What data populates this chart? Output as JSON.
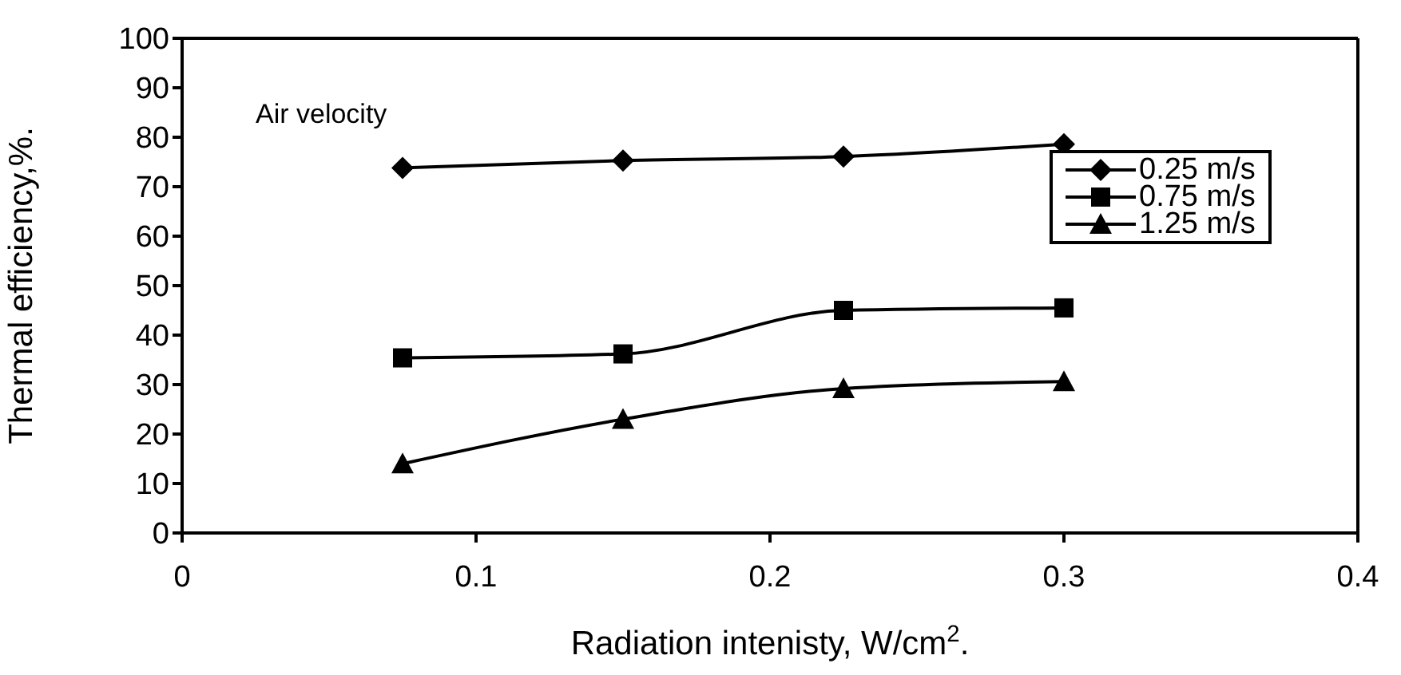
{
  "chart_data": {
    "type": "line",
    "xlabel": "Radiation intenisty, W/cm$^{2}$.",
    "ylabel": "Thermal efficiency,%.",
    "annotations": [
      "Air velocity"
    ],
    "x": [
      0.075,
      0.15,
      0.225,
      0.3
    ],
    "series": [
      {
        "name": "0.25 m/s",
        "color": "#000000",
        "marker": "diamond",
        "values": [
          73.8,
          75.3,
          76.1,
          78.6
        ]
      },
      {
        "name": "0.75 m/s",
        "color": "#000000",
        "marker": "square",
        "values": [
          35.4,
          36.2,
          45,
          45.5
        ]
      },
      {
        "name": "1.25 m/s",
        "color": "#000000",
        "marker": "triangle",
        "values": [
          14,
          23,
          29.2,
          30.6
        ]
      }
    ],
    "xlim": [
      0,
      0.4
    ],
    "xticks": [
      0,
      0.1,
      0.2,
      0.3,
      0.4
    ],
    "ylim": [
      0,
      100
    ],
    "yticks": [
      0,
      10,
      20,
      30,
      40,
      50,
      60,
      70,
      80,
      90,
      100
    ],
    "grid": false,
    "legend": "right",
    "line_style": "solid"
  }
}
